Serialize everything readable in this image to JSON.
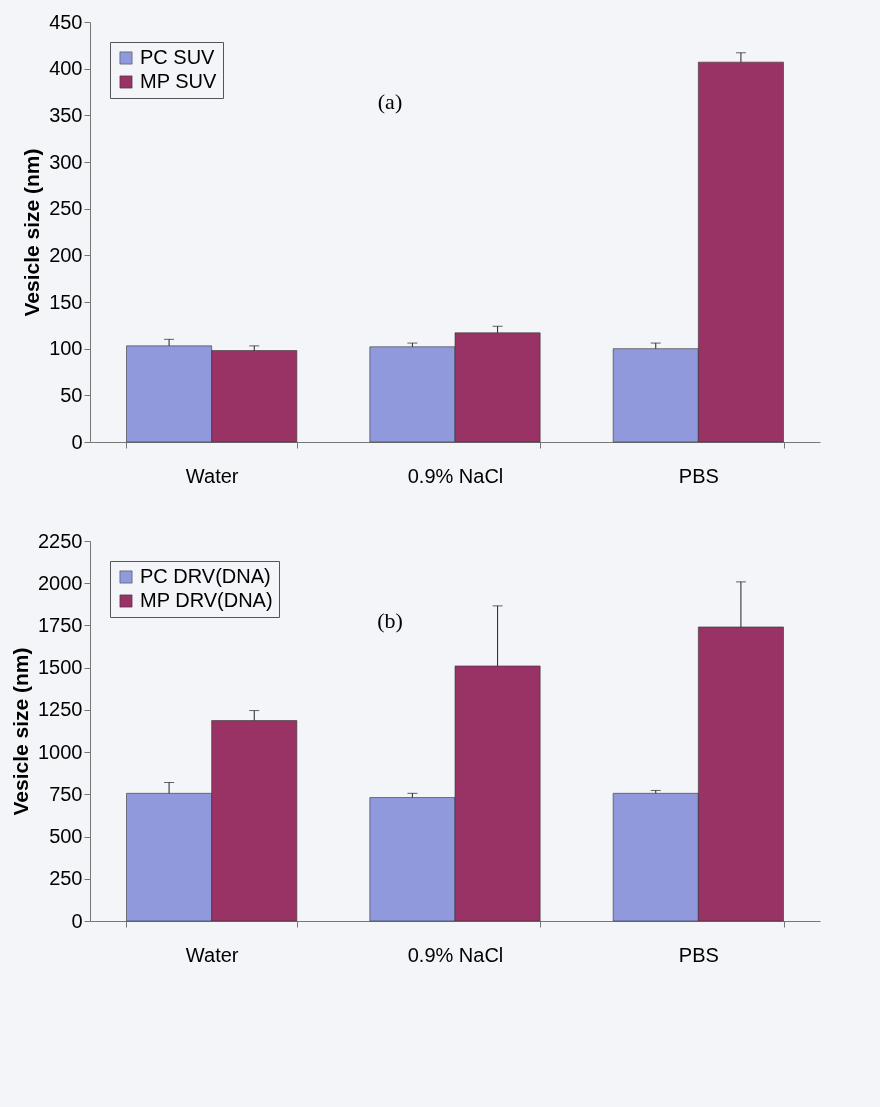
{
  "chart_data": [
    {
      "type": "bar",
      "categories": [
        "Water",
        "0.9% NaCl",
        "PBS"
      ],
      "ylabel": "Vesicle size (nm)",
      "ylim": [
        0,
        450
      ],
      "yticks": [
        0,
        50,
        100,
        150,
        200,
        250,
        300,
        350,
        400,
        450
      ],
      "grid": false,
      "legend": "top left",
      "annotations": [
        "(a)"
      ],
      "series": [
        {
          "name": "PC SUV",
          "color": "#9099dc",
          "values": [
            103,
            102,
            100
          ],
          "errors": [
            [
              103,
              110
            ],
            [
              102,
              106
            ],
            [
              100,
              106
            ]
          ]
        },
        {
          "name": "MP SUV",
          "color": "#993366",
          "values": [
            98,
            117,
            407
          ],
          "errors": [
            [
              98,
              103
            ],
            [
              117,
              124
            ],
            [
              407,
              417
            ]
          ]
        }
      ]
    },
    {
      "type": "bar",
      "categories": [
        "Water",
        "0.9% NaCl",
        "PBS"
      ],
      "ylabel": "Vesicle size (nm)",
      "ylim": [
        0,
        2250
      ],
      "yticks": [
        0,
        250,
        500,
        750,
        1000,
        1250,
        1500,
        1750,
        2000,
        2250
      ],
      "grid": false,
      "legend": "top left",
      "annotations": [
        "(b)"
      ],
      "series": [
        {
          "name": "PC DRV(DNA)",
          "color": "#9099dc",
          "values": [
            756,
            731,
            756
          ],
          "errors": [
            [
              756,
              820
            ],
            [
              731,
              756
            ],
            [
              756,
              773
            ]
          ]
        },
        {
          "name": "MP DRV(DNA)",
          "color": "#993366",
          "values": [
            1187,
            1510,
            1741
          ],
          "errors": [
            [
              1187,
              1246
            ],
            [
              1510,
              1866
            ],
            [
              1741,
              2008
            ]
          ]
        }
      ]
    }
  ]
}
